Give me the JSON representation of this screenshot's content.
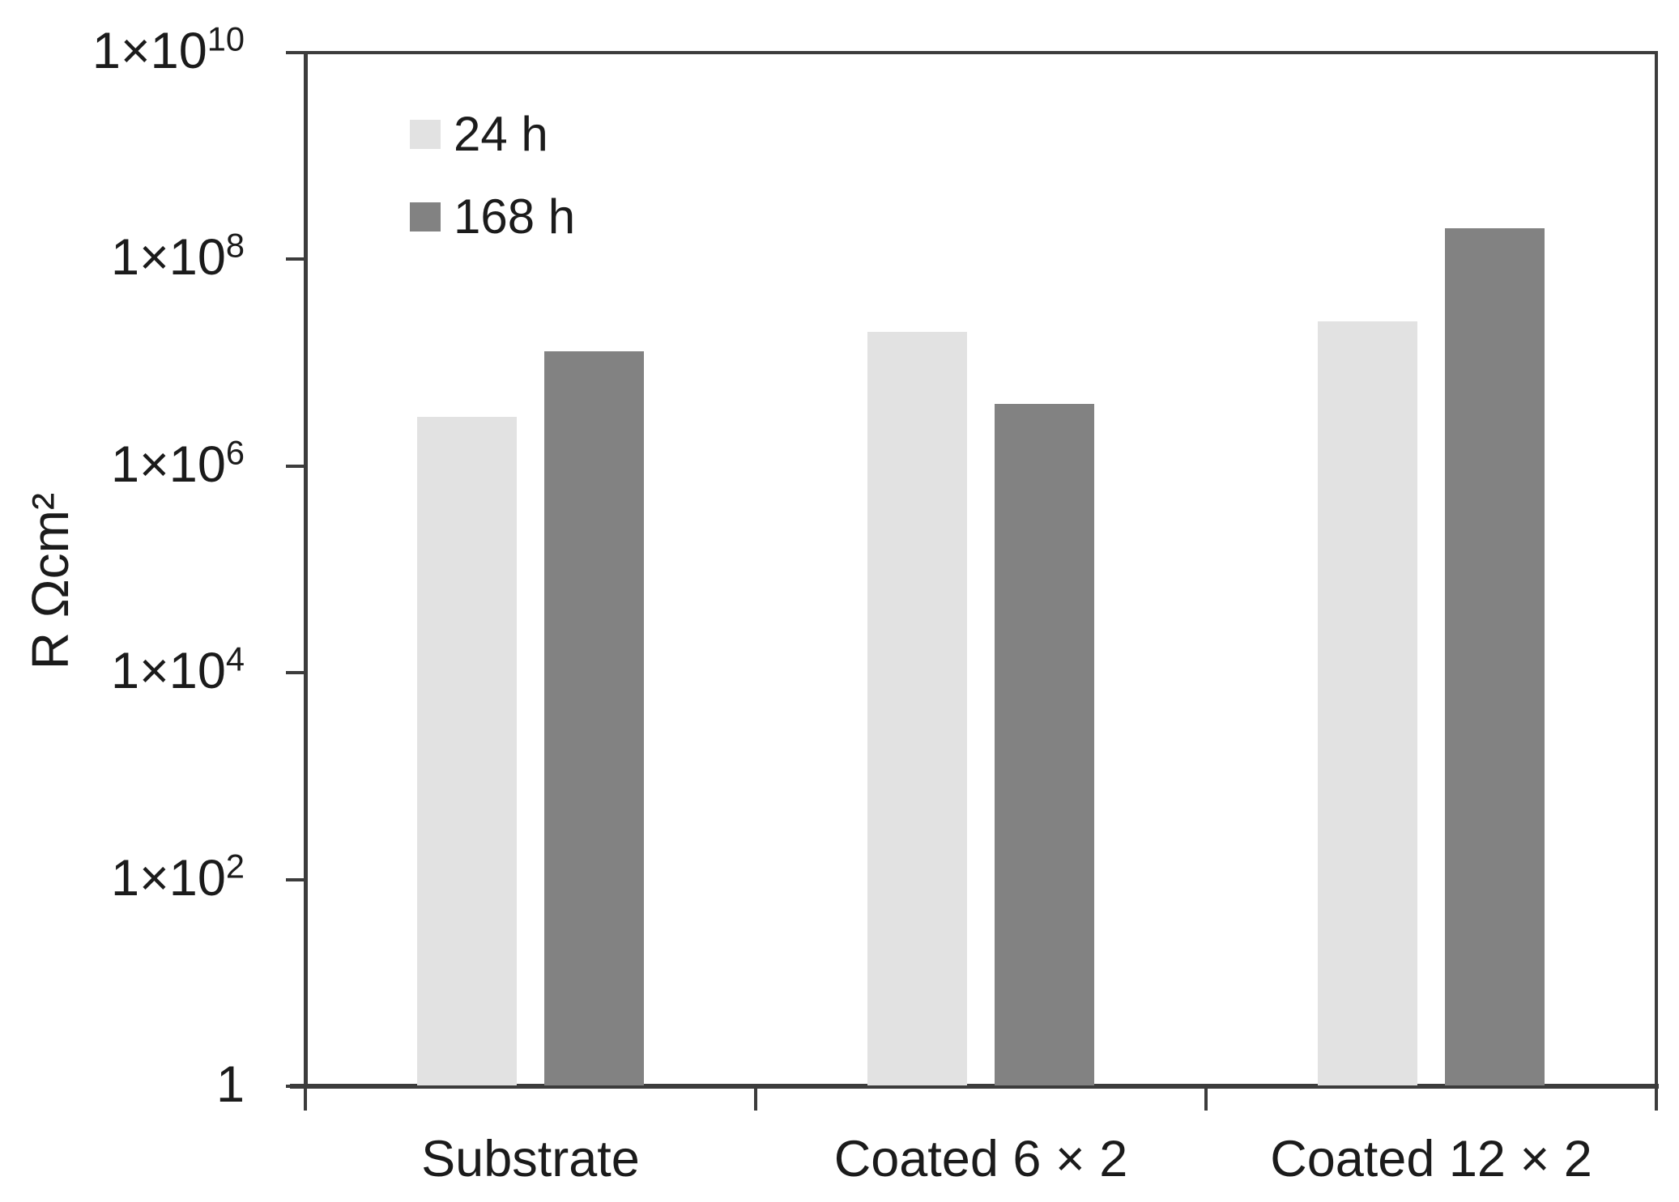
{
  "chart_data": {
    "type": "bar",
    "title": "",
    "xlabel": "",
    "ylabel": "R Ωcm²",
    "categories": [
      "Substrate",
      "Coated 6 × 2",
      "Coated 12 × 2"
    ],
    "series": [
      {
        "name": "24 h",
        "color": "#e2e2e2",
        "values": [
          3000000,
          20000000,
          25000000
        ]
      },
      {
        "name": "168 h",
        "color": "#828282",
        "values": [
          13000000,
          4000000,
          200000000
        ]
      }
    ],
    "y_axis": {
      "scale": "log",
      "min": 1,
      "max": 10000000000,
      "tick_labels": [
        "1×10^10",
        "1×10^8",
        "1×10^6",
        "1×10^4",
        "1×10^2",
        "1"
      ],
      "tick_values": [
        10000000000,
        100000000,
        1000000,
        10000,
        100,
        1
      ]
    },
    "legend": {
      "position": "top-left-inside",
      "entries": [
        "24 h",
        "168 h"
      ]
    },
    "grid": false,
    "colors": {
      "axis": "#3c3c3c",
      "text": "#1b1b1b",
      "background": "#ffffff",
      "series_24h": "#e2e2e2",
      "series_168h": "#828282"
    }
  }
}
